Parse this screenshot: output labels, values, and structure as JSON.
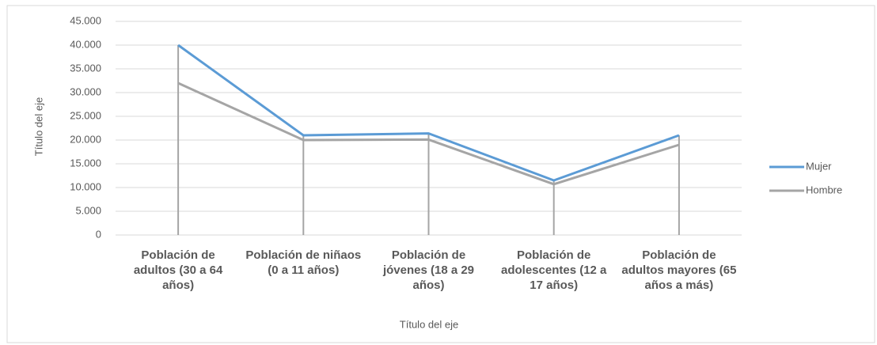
{
  "chart_data": {
    "type": "line",
    "x_axis_title": "Título del eje",
    "y_axis_title": "Título del eje",
    "categories": [
      "Población de adultos (30 a 64 años)",
      "Población de niñaos (0 a 11 años)",
      "Población de jóvenes (18 a 29 años)",
      "Población de adolescentes (12 a 17 años)",
      "Población de adultos mayores (65 años a más)"
    ],
    "series": [
      {
        "name": "Mujer",
        "color": "#5b9bd5",
        "values": [
          40000,
          21000,
          21400,
          11500,
          21000
        ]
      },
      {
        "name": "Hombre",
        "color": "#a5a5a5",
        "values": [
          32000,
          20000,
          20100,
          10700,
          19000
        ]
      }
    ],
    "ylim": [
      0,
      45000
    ],
    "yticks": [
      0,
      {
        "value": 5000,
        "label": "5.000"
      },
      {
        "value": 10000,
        "label": "10.000"
      },
      {
        "value": 15000,
        "label": "15.000"
      },
      {
        "value": 20000,
        "label": "20.000"
      },
      {
        "value": 25000,
        "label": "25.000"
      },
      {
        "value": 30000,
        "label": "30.000"
      },
      {
        "value": 35000,
        "label": "35.000"
      },
      {
        "value": 40000,
        "label": "40.000"
      },
      {
        "value": 45000,
        "label": "45.000"
      }
    ],
    "grid": true,
    "drop_lines": true,
    "legend": "right"
  }
}
